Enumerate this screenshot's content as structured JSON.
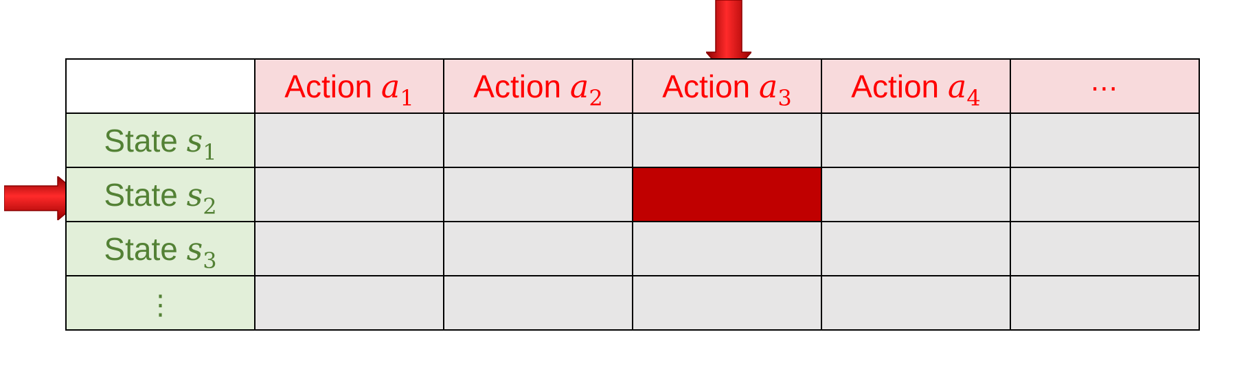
{
  "table": {
    "action_word": "Action",
    "state_word": "State",
    "actions": [
      {
        "var": "a",
        "sub": "1"
      },
      {
        "var": "a",
        "sub": "2"
      },
      {
        "var": "a",
        "sub": "3"
      },
      {
        "var": "a",
        "sub": "4"
      }
    ],
    "actions_more": "⋯",
    "states": [
      {
        "var": "s",
        "sub": "1"
      },
      {
        "var": "s",
        "sub": "2"
      },
      {
        "var": "s",
        "sub": "3"
      }
    ],
    "states_more": "⋮",
    "selected_state": 2,
    "selected_action": 3
  },
  "colors": {
    "action_text": "#ff0000",
    "action_bg": "#f8dadc",
    "state_text": "#538135",
    "state_bg": "#e2efd9",
    "cell_bg": "#e7e6e6",
    "selected_cell": "#c00000",
    "arrow": "#d40000"
  }
}
